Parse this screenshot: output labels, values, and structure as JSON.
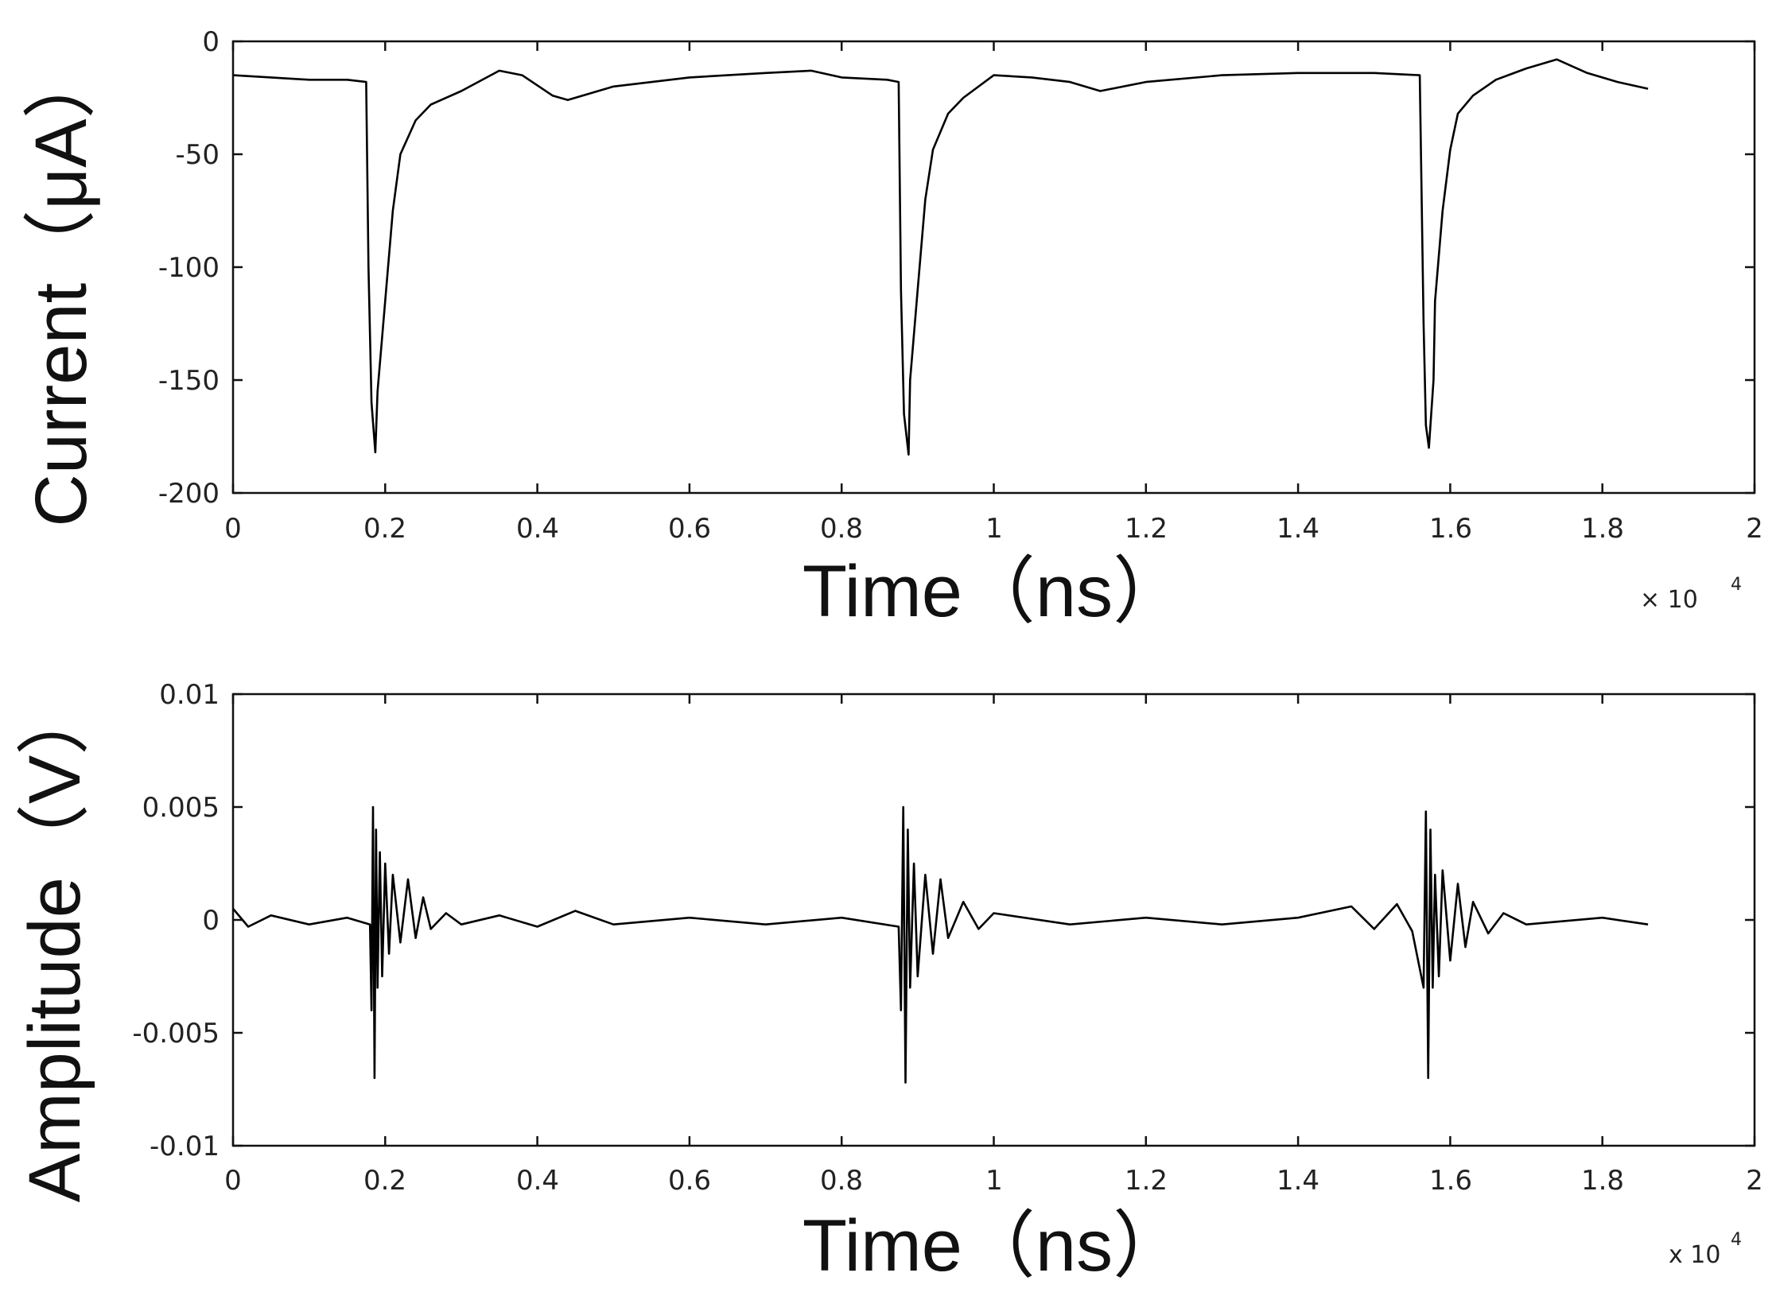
{
  "chart_data": [
    {
      "type": "line",
      "xlabel": "Time（ns）",
      "ylabel": "Current（μA）",
      "x_multiplier_label": "× 10",
      "x_multiplier_exp": "4",
      "xlim": [
        0,
        2
      ],
      "ylim": [
        -200,
        0
      ],
      "xticks": [
        "0",
        "0.2",
        "0.4",
        "0.6",
        "0.8",
        "1",
        "1.2",
        "1.4",
        "1.6",
        "1.8",
        "2"
      ],
      "yticks": [
        "0",
        "-50",
        "-100",
        "-150",
        "-200"
      ],
      "ytick_values": [
        0,
        -50,
        -100,
        -150,
        -200
      ],
      "grid": false,
      "series": [
        {
          "color": "#000000",
          "x": [
            0,
            0.05,
            0.1,
            0.15,
            0.175,
            0.178,
            0.182,
            0.187,
            0.19,
            0.2,
            0.21,
            0.22,
            0.24,
            0.26,
            0.3,
            0.35,
            0.38,
            0.42,
            0.44,
            0.5,
            0.6,
            0.7,
            0.76,
            0.8,
            0.86,
            0.875,
            0.878,
            0.882,
            0.888,
            0.89,
            0.9,
            0.91,
            0.92,
            0.94,
            0.96,
            1.0,
            1.05,
            1.1,
            1.14,
            1.2,
            1.3,
            1.4,
            1.5,
            1.56,
            1.565,
            1.568,
            1.572,
            1.578,
            1.58,
            1.59,
            1.6,
            1.61,
            1.63,
            1.66,
            1.7,
            1.74,
            1.78,
            1.82,
            1.86
          ],
          "y": [
            -15,
            -16,
            -17,
            -17,
            -18,
            -100,
            -160,
            -182,
            -155,
            -115,
            -75,
            -50,
            -35,
            -28,
            -22,
            -13,
            -15,
            -24,
            -26,
            -20,
            -16,
            -14,
            -13,
            -16,
            -17,
            -18,
            -110,
            -165,
            -183,
            -150,
            -110,
            -70,
            -48,
            -32,
            -25,
            -15,
            -16,
            -18,
            -22,
            -18,
            -15,
            -14,
            -14,
            -15,
            -125,
            -170,
            -180,
            -150,
            -115,
            -75,
            -48,
            -32,
            -24,
            -17,
            -12,
            -8,
            -14,
            -18,
            -21
          ]
        }
      ]
    },
    {
      "type": "line",
      "xlabel": "Time（ns）",
      "ylabel": "Amplitude（V）",
      "x_multiplier_label": "x 10",
      "x_multiplier_exp": "4",
      "xlim": [
        0,
        2
      ],
      "ylim": [
        -0.01,
        0.01
      ],
      "xticks": [
        "0",
        "0.2",
        "0.4",
        "0.6",
        "0.8",
        "1",
        "1.2",
        "1.4",
        "1.6",
        "1.8",
        "2"
      ],
      "yticks": [
        "0.01",
        "0.005",
        "0",
        "-0.005",
        "-0.01"
      ],
      "ytick_values": [
        0.01,
        0.005,
        0,
        -0.005,
        -0.01
      ],
      "grid": false,
      "series": [
        {
          "color": "#000000",
          "x": [
            0,
            0.02,
            0.05,
            0.1,
            0.15,
            0.18,
            0.182,
            0.184,
            0.186,
            0.188,
            0.19,
            0.193,
            0.196,
            0.2,
            0.205,
            0.21,
            0.22,
            0.23,
            0.24,
            0.25,
            0.26,
            0.28,
            0.3,
            0.35,
            0.4,
            0.45,
            0.5,
            0.6,
            0.7,
            0.8,
            0.875,
            0.878,
            0.881,
            0.884,
            0.887,
            0.89,
            0.895,
            0.9,
            0.91,
            0.92,
            0.93,
            0.94,
            0.96,
            0.98,
            1.0,
            1.1,
            1.2,
            1.3,
            1.4,
            1.47,
            1.5,
            1.53,
            1.55,
            1.565,
            1.568,
            1.571,
            1.574,
            1.577,
            1.58,
            1.585,
            1.59,
            1.6,
            1.61,
            1.62,
            1.63,
            1.65,
            1.67,
            1.7,
            1.8,
            1.86
          ],
          "y": [
            0.0005,
            -0.0003,
            0.0002,
            -0.0002,
            0.0001,
            -0.0002,
            -0.004,
            0.005,
            -0.007,
            0.004,
            -0.003,
            0.003,
            -0.0025,
            0.0025,
            -0.0015,
            0.002,
            -0.001,
            0.0018,
            -0.0008,
            0.001,
            -0.0004,
            0.0003,
            -0.0002,
            0.0002,
            -0.0003,
            0.0004,
            -0.0002,
            0.0001,
            -0.0002,
            0.0001,
            -0.0003,
            -0.004,
            0.005,
            -0.0072,
            0.004,
            -0.003,
            0.0025,
            -0.0025,
            0.002,
            -0.0015,
            0.0018,
            -0.0008,
            0.0008,
            -0.0004,
            0.0003,
            -0.0002,
            0.0001,
            -0.0002,
            0.0001,
            0.0006,
            -0.0004,
            0.0007,
            -0.0005,
            -0.003,
            0.0048,
            -0.007,
            0.004,
            -0.003,
            0.002,
            -0.0025,
            0.0022,
            -0.0018,
            0.0016,
            -0.0012,
            0.0008,
            -0.0006,
            0.0003,
            -0.0002,
            0.0001,
            -0.0002
          ]
        }
      ]
    }
  ]
}
